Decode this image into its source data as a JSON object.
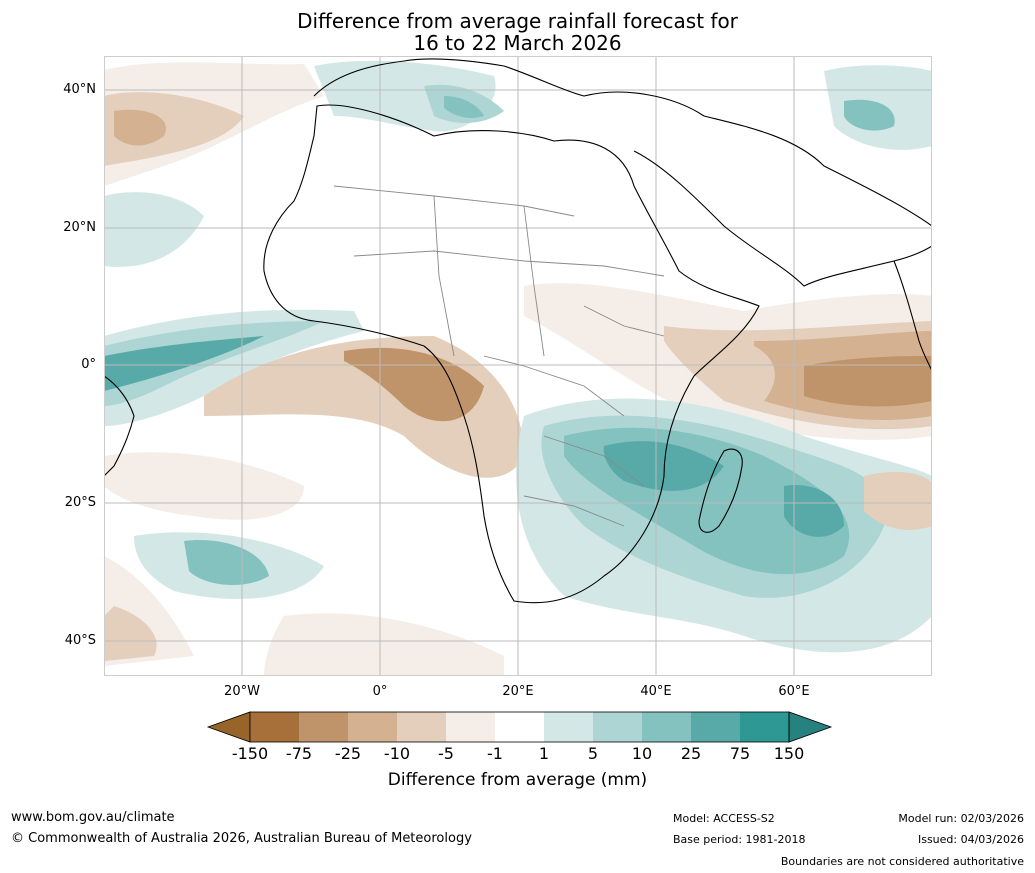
{
  "title_line1": "Difference from average rainfall forecast for",
  "title_line2": "16 to 22 March 2026",
  "lat_labels": [
    "40°N",
    "20°N",
    "0°",
    "20°S",
    "40°S"
  ],
  "lon_labels": [
    "20°W",
    "0°",
    "20°E",
    "40°E",
    "60°E"
  ],
  "colorbar": {
    "ticks": [
      "-150",
      "-75",
      "-25",
      "-10",
      "-5",
      "-1",
      "1",
      "5",
      "10",
      "25",
      "75",
      "150"
    ],
    "colors": [
      "#a7703b",
      "#c0946a",
      "#d4b291",
      "#e3cfbb",
      "#f4ede8",
      "#ffffff",
      "#d3e8e6",
      "#acd5d3",
      "#84c2c0",
      "#58aaa9",
      "#2e9895"
    ],
    "under_color": "#976429",
    "over_color": "#27817f",
    "label": "Difference from average (mm)"
  },
  "footer": {
    "url": "www.bom.gov.au/climate",
    "copyright": "© Commonwealth of Australia 2026, Australian Bureau of Meteorology",
    "model": "Model: ACCESS-S2",
    "base_period": "Base period: 1981-2018",
    "model_run": "Model run: 02/03/2026",
    "issued": "Issued: 04/03/2026",
    "disclaimer": "Boundaries are not considered authoritative"
  }
}
